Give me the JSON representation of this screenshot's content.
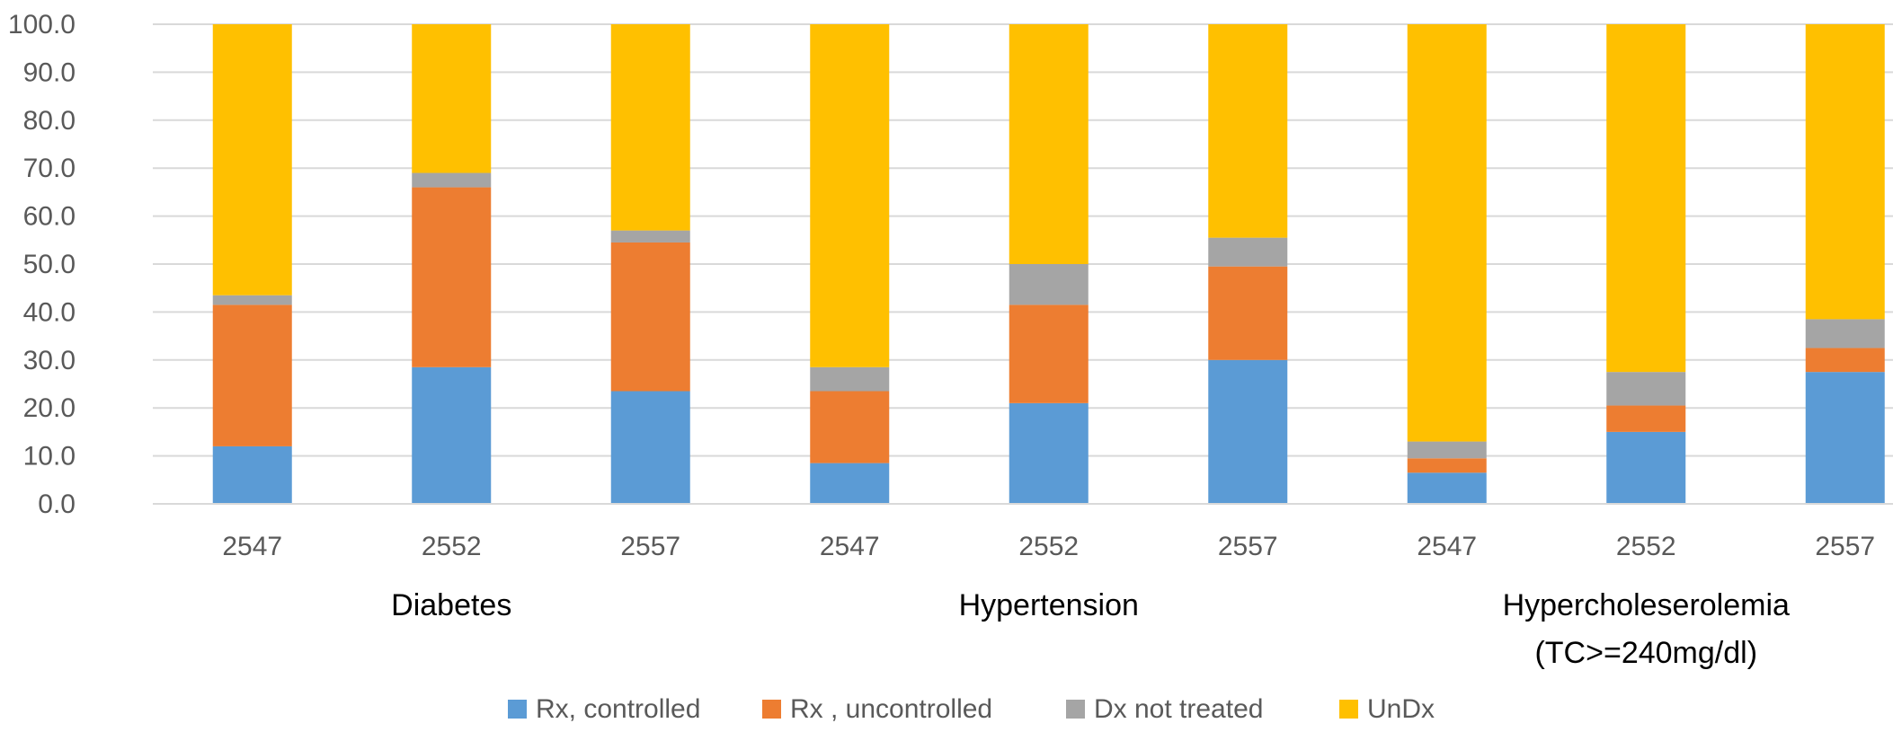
{
  "chart_data": {
    "type": "bar",
    "stacked": true,
    "categories": [
      "2547",
      "2552",
      "2557",
      "2547",
      "2552",
      "2557",
      "2547",
      "2552",
      "2557"
    ],
    "groups": [
      {
        "label_lines": [
          "Diabetes"
        ],
        "category_indices": [
          0,
          1,
          2
        ]
      },
      {
        "label_lines": [
          "Hypertension"
        ],
        "category_indices": [
          3,
          4,
          5
        ]
      },
      {
        "label_lines": [
          "Hypercholeserolemia",
          "(TC>=240mg/dl)"
        ],
        "category_indices": [
          6,
          7,
          8
        ]
      }
    ],
    "series": [
      {
        "name": "Rx, controlled",
        "color": "#5B9BD5",
        "values": [
          12.0,
          28.5,
          23.5,
          8.5,
          21.0,
          30.0,
          6.5,
          15.0,
          27.5
        ]
      },
      {
        "name": "Rx , uncontrolled",
        "color": "#ED7D31",
        "values": [
          29.5,
          37.5,
          31.0,
          15.0,
          20.5,
          19.5,
          3.0,
          5.5,
          5.0
        ]
      },
      {
        "name": "Dx not treated",
        "color": "#A5A5A5",
        "values": [
          2.0,
          3.0,
          2.5,
          5.0,
          8.5,
          6.0,
          3.5,
          7.0,
          6.0
        ]
      },
      {
        "name": "UnDx",
        "color": "#FFC000",
        "values": [
          56.5,
          31.0,
          43.0,
          71.5,
          50.0,
          44.5,
          87.0,
          72.5,
          61.5
        ]
      }
    ],
    "y_ticks": [
      "0.0",
      "10.0",
      "20.0",
      "30.0",
      "40.0",
      "50.0",
      "60.0",
      "70.0",
      "80.0",
      "90.0",
      "100.0"
    ],
    "ylim": [
      0,
      100
    ],
    "grid": true,
    "legend_position": "bottom"
  }
}
